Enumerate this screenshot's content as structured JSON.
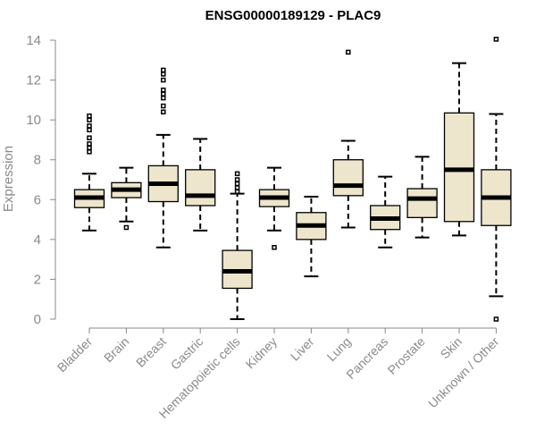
{
  "chart_data": {
    "type": "boxplot",
    "title": "ENSG00000189129 - PLAC9",
    "xlabel": "",
    "ylabel": "Expression",
    "ylim": [
      0,
      14
    ],
    "yticks": [
      0,
      2,
      4,
      6,
      8,
      10,
      12,
      14
    ],
    "grid": false,
    "legend": "none",
    "colors": {
      "box_fill": "#ede6cd",
      "box_stroke": "#000000",
      "median": "#000000",
      "axis": "#8a8a8a"
    },
    "categories": [
      "Bladder",
      "Brain",
      "Breast",
      "Gastric",
      "Hematopoietic cells",
      "Kidney",
      "Liver",
      "Lung",
      "Pancreas",
      "Prostate",
      "Skin",
      "Unknown / Other"
    ],
    "boxes": [
      {
        "name": "Bladder",
        "min": 4.45,
        "q1": 5.6,
        "median": 6.1,
        "q3": 6.5,
        "max": 7.3,
        "outliers": [
          8.4,
          8.6,
          8.8,
          9.1,
          9.5,
          9.7,
          10.0,
          10.2
        ]
      },
      {
        "name": "Brain",
        "min": 4.9,
        "q1": 6.1,
        "median": 6.5,
        "q3": 6.85,
        "max": 7.6,
        "outliers": [
          4.6
        ]
      },
      {
        "name": "Breast",
        "min": 3.6,
        "q1": 5.9,
        "median": 6.8,
        "q3": 7.7,
        "max": 9.25,
        "outliers": [
          10.4,
          10.7,
          11.1,
          11.3,
          11.5,
          12.0,
          12.3,
          12.5
        ]
      },
      {
        "name": "Gastric",
        "min": 4.45,
        "q1": 5.7,
        "median": 6.2,
        "q3": 7.5,
        "max": 9.05,
        "outliers": []
      },
      {
        "name": "Hematopoietic cells",
        "min": 0.0,
        "q1": 1.55,
        "median": 2.4,
        "q3": 3.45,
        "max": 6.3,
        "outliers": [
          6.4,
          6.6,
          6.8,
          7.0,
          7.3
        ]
      },
      {
        "name": "Kidney",
        "min": 4.45,
        "q1": 5.65,
        "median": 6.1,
        "q3": 6.5,
        "max": 7.6,
        "outliers": [
          3.6
        ]
      },
      {
        "name": "Liver",
        "min": 2.15,
        "q1": 4.0,
        "median": 4.7,
        "q3": 5.35,
        "max": 6.15,
        "outliers": []
      },
      {
        "name": "Lung",
        "min": 4.6,
        "q1": 6.2,
        "median": 6.7,
        "q3": 8.0,
        "max": 8.95,
        "outliers": [
          13.4
        ]
      },
      {
        "name": "Pancreas",
        "min": 3.6,
        "q1": 4.5,
        "median": 5.05,
        "q3": 5.7,
        "max": 7.15,
        "outliers": []
      },
      {
        "name": "Prostate",
        "min": 4.1,
        "q1": 5.1,
        "median": 6.05,
        "q3": 6.55,
        "max": 8.15,
        "outliers": []
      },
      {
        "name": "Skin",
        "min": 4.2,
        "q1": 4.9,
        "median": 7.5,
        "q3": 10.35,
        "max": 12.85,
        "outliers": []
      },
      {
        "name": "Unknown / Other",
        "min": 1.15,
        "q1": 4.7,
        "median": 6.1,
        "q3": 7.5,
        "max": 10.3,
        "outliers": [
          0.0,
          14.05
        ]
      }
    ]
  }
}
